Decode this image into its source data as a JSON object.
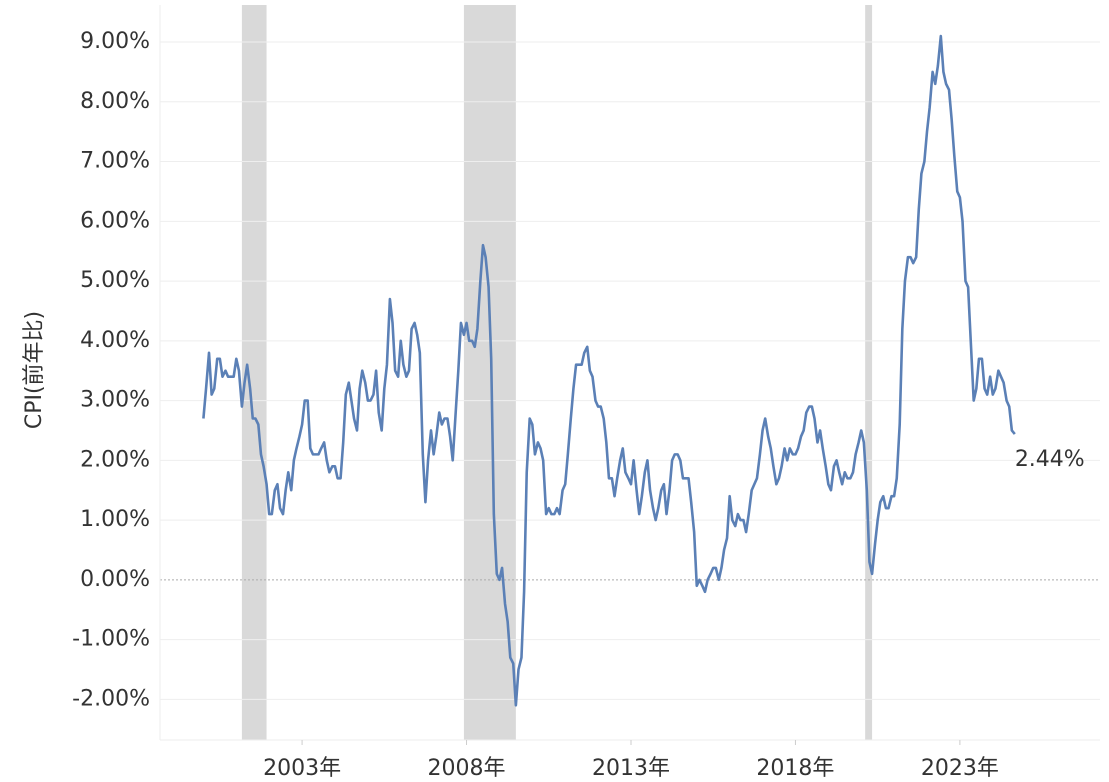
{
  "chart_data": {
    "type": "line",
    "y_label": "CPI(前年比)",
    "color": "#5b80b6",
    "recession_color": "#d9d9d9",
    "recessions": [
      [
        2001.17,
        2001.92
      ],
      [
        2007.92,
        2009.5
      ],
      [
        2020.12,
        2020.33
      ]
    ],
    "x": [
      2000.0,
      2000.08,
      2000.17,
      2000.25,
      2000.33,
      2000.42,
      2000.5,
      2000.58,
      2000.67,
      2000.75,
      2000.83,
      2000.92,
      2001.0,
      2001.08,
      2001.17,
      2001.25,
      2001.33,
      2001.42,
      2001.5,
      2001.58,
      2001.67,
      2001.75,
      2001.83,
      2001.92,
      2002.0,
      2002.08,
      2002.17,
      2002.25,
      2002.33,
      2002.42,
      2002.5,
      2002.58,
      2002.67,
      2002.75,
      2002.83,
      2002.92,
      2003.0,
      2003.08,
      2003.17,
      2003.25,
      2003.33,
      2003.42,
      2003.5,
      2003.58,
      2003.67,
      2003.75,
      2003.83,
      2003.92,
      2004.0,
      2004.08,
      2004.17,
      2004.25,
      2004.33,
      2004.42,
      2004.5,
      2004.58,
      2004.67,
      2004.75,
      2004.83,
      2004.92,
      2005.0,
      2005.08,
      2005.17,
      2005.25,
      2005.33,
      2005.42,
      2005.5,
      2005.58,
      2005.67,
      2005.75,
      2005.83,
      2005.92,
      2006.0,
      2006.08,
      2006.17,
      2006.25,
      2006.33,
      2006.42,
      2006.5,
      2006.58,
      2006.67,
      2006.75,
      2006.83,
      2006.92,
      2007.0,
      2007.08,
      2007.17,
      2007.25,
      2007.33,
      2007.42,
      2007.5,
      2007.58,
      2007.67,
      2007.75,
      2007.83,
      2007.92,
      2008.0,
      2008.08,
      2008.17,
      2008.25,
      2008.33,
      2008.42,
      2008.5,
      2008.58,
      2008.67,
      2008.75,
      2008.83,
      2008.92,
      2009.0,
      2009.08,
      2009.17,
      2009.25,
      2009.33,
      2009.42,
      2009.5,
      2009.58,
      2009.67,
      2009.75,
      2009.83,
      2009.92,
      2010.0,
      2010.08,
      2010.17,
      2010.25,
      2010.33,
      2010.42,
      2010.5,
      2010.58,
      2010.67,
      2010.75,
      2010.83,
      2010.92,
      2011.0,
      2011.08,
      2011.17,
      2011.25,
      2011.33,
      2011.42,
      2011.5,
      2011.58,
      2011.67,
      2011.75,
      2011.83,
      2011.92,
      2012.0,
      2012.08,
      2012.17,
      2012.25,
      2012.33,
      2012.42,
      2012.5,
      2012.58,
      2012.67,
      2012.75,
      2012.83,
      2012.92,
      2013.0,
      2013.08,
      2013.17,
      2013.25,
      2013.33,
      2013.42,
      2013.5,
      2013.58,
      2013.67,
      2013.75,
      2013.83,
      2013.92,
      2014.0,
      2014.08,
      2014.17,
      2014.25,
      2014.33,
      2014.42,
      2014.5,
      2014.58,
      2014.67,
      2014.75,
      2014.83,
      2014.92,
      2015.0,
      2015.08,
      2015.17,
      2015.25,
      2015.33,
      2015.42,
      2015.5,
      2015.58,
      2015.67,
      2015.75,
      2015.83,
      2015.92,
      2016.0,
      2016.08,
      2016.17,
      2016.25,
      2016.33,
      2016.42,
      2016.5,
      2016.58,
      2016.67,
      2016.75,
      2016.83,
      2016.92,
      2017.0,
      2017.08,
      2017.17,
      2017.25,
      2017.33,
      2017.42,
      2017.5,
      2017.58,
      2017.67,
      2017.75,
      2017.83,
      2017.92,
      2018.0,
      2018.08,
      2018.17,
      2018.25,
      2018.33,
      2018.42,
      2018.5,
      2018.58,
      2018.67,
      2018.75,
      2018.83,
      2018.92,
      2019.0,
      2019.08,
      2019.17,
      2019.25,
      2019.33,
      2019.42,
      2019.5,
      2019.58,
      2019.67,
      2019.75,
      2019.83,
      2019.92,
      2020.0,
      2020.08,
      2020.17,
      2020.25,
      2020.33,
      2020.42,
      2020.5,
      2020.58,
      2020.67,
      2020.75,
      2020.83,
      2020.92,
      2021.0,
      2021.08,
      2021.17,
      2021.25,
      2021.33,
      2021.42,
      2021.5,
      2021.58,
      2021.67,
      2021.75,
      2021.83,
      2021.92,
      2022.0,
      2022.08,
      2022.17,
      2022.25,
      2022.33,
      2022.42,
      2022.5,
      2022.58,
      2022.67,
      2022.75,
      2022.83,
      2022.92,
      2023.0,
      2023.08,
      2023.17,
      2023.25,
      2023.33,
      2023.42,
      2023.5,
      2023.58,
      2023.67,
      2023.75,
      2023.83,
      2023.92,
      2024.0,
      2024.08,
      2024.17,
      2024.25,
      2024.33,
      2024.42,
      2024.5,
      2024.58,
      2024.67
    ],
    "values": [
      2.7,
      3.2,
      3.8,
      3.1,
      3.2,
      3.7,
      3.7,
      3.4,
      3.5,
      3.4,
      3.4,
      3.4,
      3.7,
      3.5,
      2.9,
      3.3,
      3.6,
      3.2,
      2.7,
      2.7,
      2.6,
      2.1,
      1.9,
      1.6,
      1.1,
      1.1,
      1.5,
      1.6,
      1.2,
      1.1,
      1.5,
      1.8,
      1.5,
      2.0,
      2.2,
      2.4,
      2.6,
      3.0,
      3.0,
      2.2,
      2.1,
      2.1,
      2.1,
      2.2,
      2.3,
      2.0,
      1.8,
      1.9,
      1.9,
      1.7,
      1.7,
      2.3,
      3.1,
      3.3,
      3.0,
      2.7,
      2.5,
      3.2,
      3.5,
      3.3,
      3.0,
      3.0,
      3.1,
      3.5,
      2.8,
      2.5,
      3.2,
      3.6,
      4.7,
      4.3,
      3.5,
      3.4,
      4.0,
      3.6,
      3.4,
      3.5,
      4.2,
      4.3,
      4.1,
      3.8,
      2.1,
      1.3,
      2.0,
      2.5,
      2.1,
      2.4,
      2.8,
      2.6,
      2.7,
      2.7,
      2.4,
      2.0,
      2.8,
      3.5,
      4.3,
      4.1,
      4.3,
      4.0,
      4.0,
      3.9,
      4.2,
      5.0,
      5.6,
      5.4,
      4.9,
      3.7,
      1.1,
      0.1,
      0.0,
      0.2,
      -0.4,
      -0.7,
      -1.3,
      -1.4,
      -2.1,
      -1.5,
      -1.3,
      -0.2,
      1.8,
      2.7,
      2.6,
      2.1,
      2.3,
      2.2,
      2.0,
      1.1,
      1.2,
      1.1,
      1.1,
      1.2,
      1.1,
      1.5,
      1.6,
      2.1,
      2.7,
      3.2,
      3.6,
      3.6,
      3.6,
      3.8,
      3.9,
      3.5,
      3.4,
      3.0,
      2.9,
      2.9,
      2.7,
      2.3,
      1.7,
      1.7,
      1.4,
      1.7,
      2.0,
      2.2,
      1.8,
      1.7,
      1.6,
      2.0,
      1.5,
      1.1,
      1.4,
      1.8,
      2.0,
      1.5,
      1.2,
      1.0,
      1.2,
      1.5,
      1.6,
      1.1,
      1.5,
      2.0,
      2.1,
      2.1,
      2.0,
      1.7,
      1.7,
      1.7,
      1.3,
      0.8,
      -0.1,
      0.0,
      -0.1,
      -0.2,
      0.0,
      0.1,
      0.2,
      0.2,
      0.0,
      0.2,
      0.5,
      0.7,
      1.4,
      1.0,
      0.9,
      1.1,
      1.0,
      1.0,
      0.8,
      1.1,
      1.5,
      1.6,
      1.7,
      2.1,
      2.5,
      2.7,
      2.4,
      2.2,
      1.9,
      1.6,
      1.7,
      1.9,
      2.2,
      2.0,
      2.2,
      2.1,
      2.1,
      2.2,
      2.4,
      2.5,
      2.8,
      2.9,
      2.9,
      2.7,
      2.3,
      2.5,
      2.2,
      1.9,
      1.6,
      1.5,
      1.9,
      2.0,
      1.8,
      1.6,
      1.8,
      1.7,
      1.7,
      1.8,
      2.1,
      2.3,
      2.5,
      2.3,
      1.5,
      0.3,
      0.1,
      0.6,
      1.0,
      1.3,
      1.4,
      1.2,
      1.2,
      1.4,
      1.4,
      1.7,
      2.6,
      4.2,
      5.0,
      5.4,
      5.4,
      5.3,
      5.4,
      6.2,
      6.8,
      7.0,
      7.5,
      7.9,
      8.5,
      8.3,
      8.6,
      9.1,
      8.5,
      8.3,
      8.2,
      7.7,
      7.1,
      6.5,
      6.4,
      6.0,
      5.0,
      4.9,
      4.0,
      3.0,
      3.2,
      3.7,
      3.7,
      3.2,
      3.1,
      3.4,
      3.1,
      3.2,
      3.5,
      3.4,
      3.3,
      3.0,
      2.9,
      2.5,
      2.44
    ],
    "annotation": {
      "value": 2.44,
      "label": "2.44%"
    },
    "xlim": [
      1998.68,
      2027.26
    ],
    "xticks": [
      {
        "value": 2003,
        "label": "2003年"
      },
      {
        "value": 2008,
        "label": "2008年"
      },
      {
        "value": 2013,
        "label": "2013年"
      },
      {
        "value": 2018,
        "label": "2018年"
      },
      {
        "value": 2023,
        "label": "2023年"
      }
    ],
    "ylim": [
      -2.68,
      9.62
    ],
    "yticks": [
      {
        "value": -2,
        "label": "-2.00%"
      },
      {
        "value": -1,
        "label": "-1.00%"
      },
      {
        "value": 0,
        "label": "0.00%"
      },
      {
        "value": 1,
        "label": "1.00%"
      },
      {
        "value": 2,
        "label": "2.00%"
      },
      {
        "value": 3,
        "label": "3.00%"
      },
      {
        "value": 4,
        "label": "4.00%"
      },
      {
        "value": 5,
        "label": "5.00%"
      },
      {
        "value": 6,
        "label": "6.00%"
      },
      {
        "value": 7,
        "label": "7.00%"
      },
      {
        "value": 8,
        "label": "8.00%"
      },
      {
        "value": 9,
        "label": "9.00%"
      }
    ],
    "grid": true
  }
}
